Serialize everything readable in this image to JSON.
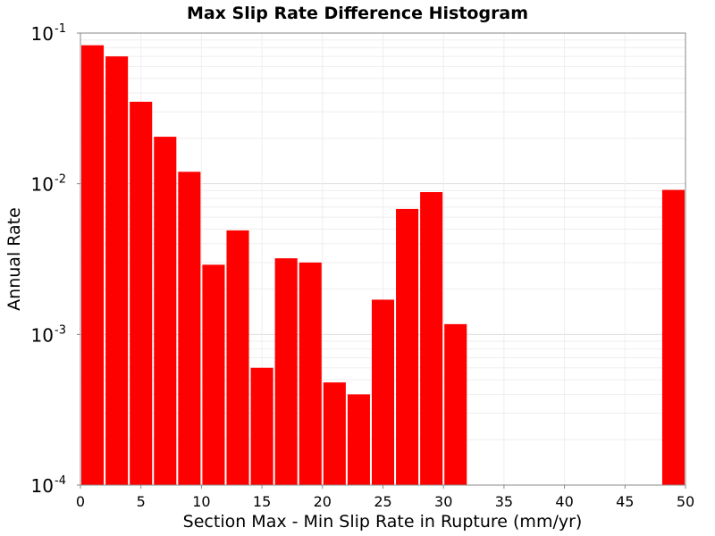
{
  "chart_data": {
    "type": "bar",
    "title": "Max Slip Rate Difference Histogram",
    "xlabel": "Section Max - Min Slip Rate in Rupture (mm/yr)",
    "ylabel": "Annual Rate",
    "xlim": [
      0,
      50
    ],
    "ylim": [
      0.0001,
      0.1
    ],
    "yscale": "log",
    "xticks": [
      "0",
      "5",
      "10",
      "15",
      "20",
      "25",
      "30",
      "35",
      "40",
      "45",
      "50"
    ],
    "yticks": [
      {
        "base": "10",
        "exp": "-4"
      },
      {
        "base": "10",
        "exp": "-3"
      },
      {
        "base": "10",
        "exp": "-2"
      },
      {
        "base": "10",
        "exp": "-1"
      }
    ],
    "bin_width": 2,
    "grid": true,
    "bar_color": "#ff0000",
    "x": [
      1,
      3,
      5,
      7,
      9,
      11,
      13,
      15,
      17,
      19,
      21,
      23,
      25,
      27,
      29,
      31,
      49
    ],
    "values": [
      0.083,
      0.07,
      0.035,
      0.0205,
      0.012,
      0.0029,
      0.0049,
      0.0006,
      0.0032,
      0.003,
      0.00048,
      0.0004,
      0.0017,
      0.0068,
      0.0088,
      0.00117,
      0.0091
    ]
  }
}
